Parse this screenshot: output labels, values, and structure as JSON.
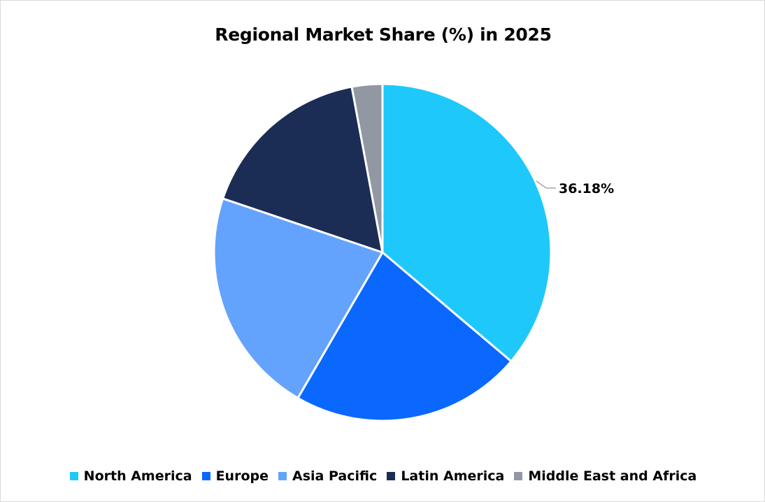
{
  "chart_data": {
    "type": "pie",
    "title": "Regional Market Share (%) in 2025",
    "categories": [
      "North America",
      "Europe",
      "Asia Pacific",
      "Latin America",
      "Middle East and Africa"
    ],
    "values": [
      36.18,
      22.2,
      21.8,
      16.9,
      2.92
    ],
    "colors": [
      "#1ec8fb",
      "#0a68ff",
      "#64a3fd",
      "#1b2d54",
      "#9197a3"
    ],
    "data_labels": [
      {
        "category": "North America",
        "text": "36.18%"
      }
    ],
    "legend_position": "bottom",
    "start_angle_deg": 0,
    "direction": "clockwise"
  },
  "title": "Regional Market Share (%) in 2025",
  "data_label": "36.18%",
  "legend": [
    {
      "label": "North America",
      "color": "#1ec8fb"
    },
    {
      "label": "Europe",
      "color": "#0a68ff"
    },
    {
      "label": "Asia Pacific",
      "color": "#64a3fd"
    },
    {
      "label": "Latin America",
      "color": "#1b2d54"
    },
    {
      "label": "Middle East and Africa",
      "color": "#9197a3"
    }
  ]
}
